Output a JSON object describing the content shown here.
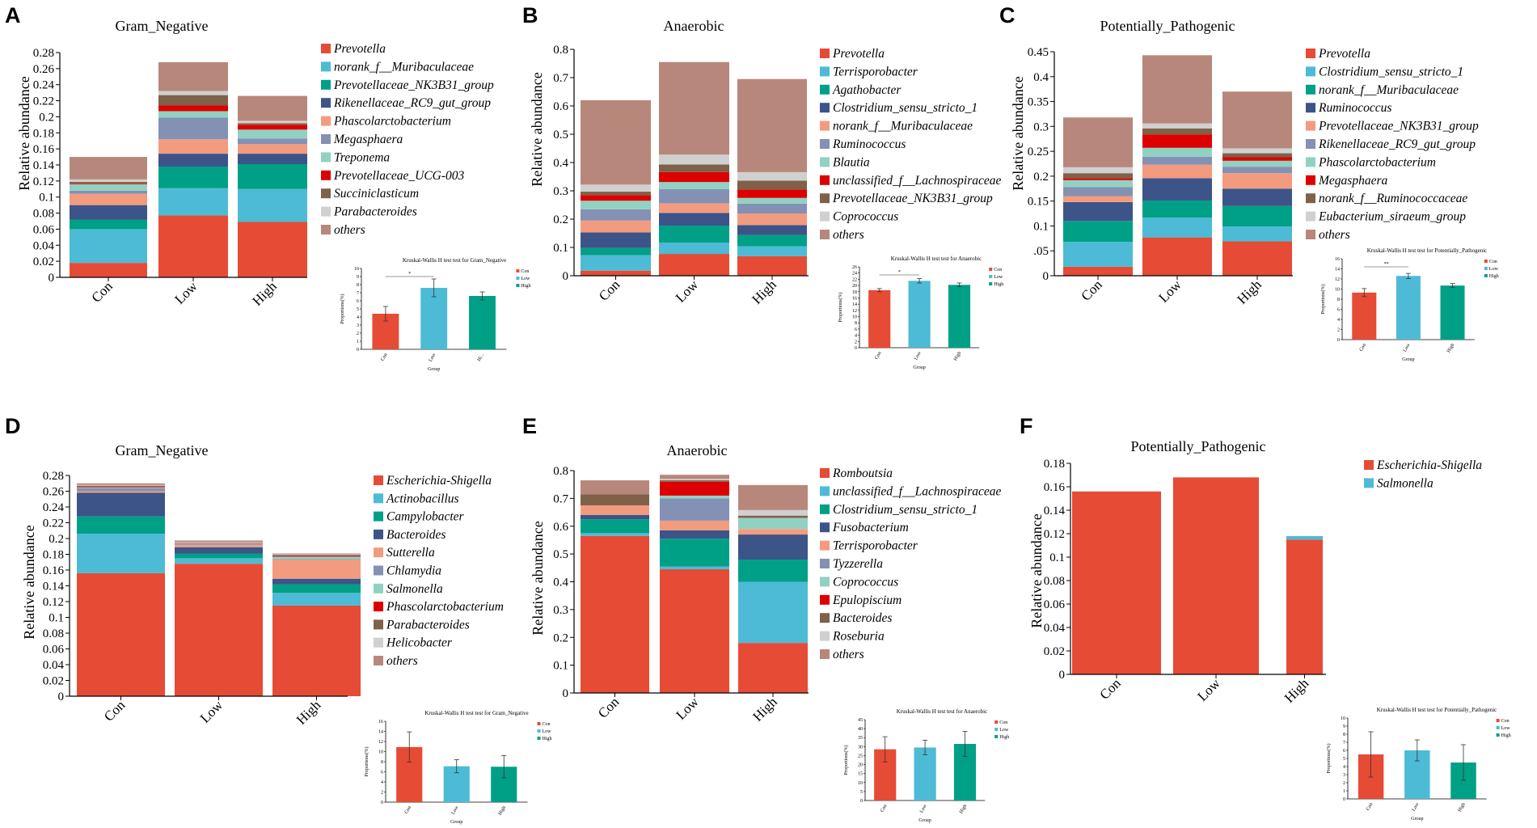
{
  "figure": {
    "colors": {
      "palette": [
        "#e64b35",
        "#4dbbd5",
        "#00a087",
        "#3c5488",
        "#f39b7f",
        "#8491b4",
        "#91d1c2",
        "#dc0000",
        "#7e6148",
        "#d0d0d0",
        "#b8877b"
      ],
      "test_bars": [
        "#e64b35",
        "#4dbbd5",
        "#00a087"
      ]
    }
  },
  "chart_data": [
    {
      "panel": "A",
      "type": "bar",
      "stacked": true,
      "title": "Gram_Negative",
      "ylabel": "Relative abundance",
      "xlabel": "",
      "ylim": [
        0,
        0.28
      ],
      "yticks": [
        "0",
        "0.02",
        "0.04",
        "0.06",
        "0.08",
        "0.1",
        "0.12",
        "0.14",
        "0.16",
        "0.18",
        "0.2",
        "0.22",
        "0.24",
        "0.26",
        "0.28"
      ],
      "categories": [
        "Con",
        "Low",
        "High"
      ],
      "series": [
        {
          "name": "Prevotella",
          "values": [
            0.018,
            0.077,
            0.069
          ]
        },
        {
          "name": "norank_f__Muribaculaceae",
          "values": [
            0.042,
            0.034,
            0.041
          ]
        },
        {
          "name": "Prevotellaceae_NK3B31_group",
          "values": [
            0.012,
            0.027,
            0.031
          ]
        },
        {
          "name": "Rikenellaceae_RC9_gut_group",
          "values": [
            0.018,
            0.016,
            0.013
          ]
        },
        {
          "name": "Phascolarctobacterium",
          "values": [
            0.014,
            0.018,
            0.012
          ]
        },
        {
          "name": "Megasphaera",
          "values": [
            0.004,
            0.027,
            0.007
          ]
        },
        {
          "name": "Treponema",
          "values": [
            0.008,
            0.008,
            0.011
          ]
        },
        {
          "name": "Prevotellaceae_UCG-003",
          "values": [
            0.001,
            0.007,
            0.006
          ]
        },
        {
          "name": "Succiniclasticum",
          "values": [
            0.002,
            0.013,
            0.002
          ]
        },
        {
          "name": "Parabacteroides",
          "values": [
            0.003,
            0.005,
            0.003
          ]
        },
        {
          "name": "others",
          "values": [
            0.028,
            0.036,
            0.031
          ]
        }
      ],
      "test": {
        "title": "Kruskal-Wallis H test test for Gram_Negative",
        "ylabel": "Proportions(%)",
        "xlabel": "Group",
        "yticks": [
          "0",
          "1",
          "2",
          "3",
          "4",
          "5",
          "6",
          "7",
          "8",
          "9",
          "10"
        ],
        "ymax": 10,
        "categories": [
          "Con",
          "Low",
          "Hi..."
        ],
        "values": [
          4.4,
          7.6,
          6.6
        ],
        "errors": [
          0.9,
          1.1,
          0.5
        ],
        "legend": [
          "Con",
          "Low",
          "High"
        ],
        "sig": "*"
      }
    },
    {
      "panel": "B",
      "type": "bar",
      "stacked": true,
      "title": "Anaerobic",
      "ylabel": "Relative abundance",
      "xlabel": "",
      "ylim": [
        0,
        0.8
      ],
      "yticks": [
        "0",
        "0.1",
        "0.2",
        "0.3",
        "0.4",
        "0.5",
        "0.6",
        "0.7",
        "0.8"
      ],
      "categories": [
        "Con",
        "Low",
        "High"
      ],
      "series": [
        {
          "name": "Prevotella",
          "values": [
            0.018,
            0.077,
            0.069
          ]
        },
        {
          "name": "Terrisporobacter",
          "values": [
            0.055,
            0.04,
            0.035
          ]
        },
        {
          "name": "Agathobacter",
          "values": [
            0.025,
            0.06,
            0.04
          ]
        },
        {
          "name": "Clostridium_sensu_stricto_1",
          "values": [
            0.055,
            0.045,
            0.035
          ]
        },
        {
          "name": "norank_f__Muribaculaceae",
          "values": [
            0.042,
            0.034,
            0.041
          ]
        },
        {
          "name": "Ruminococcus",
          "values": [
            0.04,
            0.05,
            0.035
          ]
        },
        {
          "name": "Blautia",
          "values": [
            0.03,
            0.025,
            0.02
          ]
        },
        {
          "name": "unclassified_f__Lachnospiraceae",
          "values": [
            0.02,
            0.035,
            0.03
          ]
        },
        {
          "name": "Prevotellaceae_NK3B31_group",
          "values": [
            0.012,
            0.027,
            0.031
          ]
        },
        {
          "name": "Coprococcus",
          "values": [
            0.025,
            0.035,
            0.03
          ]
        },
        {
          "name": "others",
          "values": [
            0.298,
            0.327,
            0.329
          ]
        }
      ],
      "test": {
        "title": "Kruskal-Wallis H test test for Anaerobic",
        "ylabel": "Proportions(%)",
        "xlabel": "Group",
        "yticks": [
          "0",
          "2",
          "4",
          "6",
          "8",
          "10",
          "12",
          "14",
          "16",
          "18",
          "20",
          "22",
          "24",
          "26"
        ],
        "ymax": 26,
        "categories": [
          "Con",
          "Low",
          "High"
        ],
        "values": [
          18.5,
          21.5,
          20.2
        ],
        "errors": [
          0.5,
          0.7,
          0.6
        ],
        "legend": [
          "Con",
          "Low",
          "High"
        ],
        "sig": "*"
      }
    },
    {
      "panel": "C",
      "type": "bar",
      "stacked": true,
      "title": "Potentially_Pathogenic",
      "ylabel": "Relative abundance",
      "xlabel": "",
      "ylim": [
        0,
        0.45
      ],
      "yticks": [
        "0",
        ".05",
        "0.1",
        "0.15",
        "0.2",
        "0.25",
        "0.3",
        "0.35",
        "0.4",
        "0.45"
      ],
      "categories": [
        "Con",
        "Low",
        "High"
      ],
      "series": [
        {
          "name": "Prevotella",
          "values": [
            0.018,
            0.077,
            0.069
          ]
        },
        {
          "name": "Clostridium_sensu_stricto_1",
          "values": [
            0.05,
            0.04,
            0.03
          ]
        },
        {
          "name": "norank_f__Muribaculaceae",
          "values": [
            0.042,
            0.034,
            0.041
          ]
        },
        {
          "name": "Ruminococcus",
          "values": [
            0.038,
            0.045,
            0.035
          ]
        },
        {
          "name": "Prevotellaceae_NK3B31_group",
          "values": [
            0.012,
            0.027,
            0.031
          ]
        },
        {
          "name": "Rikenellaceae_RC9_gut_group",
          "values": [
            0.018,
            0.016,
            0.013
          ]
        },
        {
          "name": "Phascolarctobacterium",
          "values": [
            0.014,
            0.018,
            0.012
          ]
        },
        {
          "name": "Megasphaera",
          "values": [
            0.004,
            0.027,
            0.007
          ]
        },
        {
          "name": "norank_f__Ruminococcaceae",
          "values": [
            0.01,
            0.012,
            0.008
          ]
        },
        {
          "name": "Eubacterium_siraeum_group",
          "values": [
            0.012,
            0.01,
            0.01
          ]
        },
        {
          "name": "others",
          "values": [
            0.1,
            0.137,
            0.114
          ]
        }
      ],
      "test": {
        "title": "Kruskal-Wallis H test test for Potentially_Pathogenic",
        "ylabel": "Proportions(%)",
        "xlabel": "Group",
        "yticks": [
          "0",
          "2",
          "4",
          "6",
          "8",
          "10",
          "12",
          "14",
          "16"
        ],
        "ymax": 16,
        "categories": [
          "Con",
          "Low",
          "High"
        ],
        "values": [
          9.3,
          12.6,
          10.7
        ],
        "errors": [
          0.8,
          0.5,
          0.4
        ],
        "legend": [
          "Con",
          "Low",
          "High"
        ],
        "sig": "**"
      }
    },
    {
      "panel": "D",
      "type": "bar",
      "stacked": true,
      "title": "Gram_Negative",
      "ylabel": "Relative abundance",
      "xlabel": "",
      "ylim": [
        0,
        0.28
      ],
      "yticks": [
        "0",
        "0.02",
        "0.04",
        "0.06",
        "0.08",
        "0.1",
        "0.12",
        "0.14",
        "0.16",
        "0.18",
        "0.2",
        "0.22",
        "0.24",
        "0.26",
        "0.28"
      ],
      "categories": [
        "Con",
        "Low",
        "High"
      ],
      "series": [
        {
          "name": "Escherichia-Shigella",
          "values": [
            0.156,
            0.168,
            0.115
          ]
        },
        {
          "name": "Actinobacillus",
          "values": [
            0.05,
            0.007,
            0.016
          ]
        },
        {
          "name": "Campylobacter",
          "values": [
            0.022,
            0.006,
            0.011
          ]
        },
        {
          "name": "Bacteroides",
          "values": [
            0.03,
            0.008,
            0.007
          ]
        },
        {
          "name": "Sutterella",
          "values": [
            0.002,
            0.003,
            0.024
          ]
        },
        {
          "name": "Chlamydia",
          "values": [
            0.004,
            0.001,
            0.001
          ]
        },
        {
          "name": "Salmonella",
          "values": [
            0.001,
            0.0005,
            0.003
          ]
        },
        {
          "name": "Phascolarctobacterium",
          "values": [
            0.001,
            0.0005,
            0.001
          ]
        },
        {
          "name": "Parabacteroides",
          "values": [
            0.001,
            0.0005,
            0.001
          ]
        },
        {
          "name": "Helicobacter",
          "values": [
            0.001,
            0.001,
            0.001
          ]
        },
        {
          "name": "others",
          "values": [
            0.002,
            0.002,
            0.001
          ]
        }
      ],
      "test": {
        "title": "Kruskal-Wallis H test test for Gram_Negative",
        "ylabel": "Proportions(%)",
        "xlabel": "Group",
        "yticks": [
          "0",
          "2",
          "4",
          "6",
          "8",
          "10",
          "12",
          "14",
          "16"
        ],
        "ymax": 16,
        "categories": [
          "Con",
          "Low",
          "High"
        ],
        "values": [
          10.9,
          7.1,
          7.0
        ],
        "errors": [
          3.0,
          1.3,
          2.2
        ],
        "legend": [
          "Con",
          "Low",
          "High"
        ],
        "sig": ""
      }
    },
    {
      "panel": "E",
      "type": "bar",
      "stacked": true,
      "title": "Anaerobic",
      "ylabel": "Relative abundance",
      "xlabel": "",
      "ylim": [
        0,
        0.8
      ],
      "yticks": [
        "0",
        "0.1",
        "0.2",
        "0.3",
        "0.4",
        "0.5",
        "0.6",
        "0.7",
        "0.8"
      ],
      "categories": [
        "Con",
        "Low",
        "High"
      ],
      "series": [
        {
          "name": "Romboutsia",
          "values": [
            0.565,
            0.445,
            0.18
          ]
        },
        {
          "name": "unclassified_f__Lachnospiraceae",
          "values": [
            0.01,
            0.01,
            0.22
          ]
        },
        {
          "name": "Clostridium_sensu_stricto_1",
          "values": [
            0.05,
            0.1,
            0.08
          ]
        },
        {
          "name": "Fusobacterium",
          "values": [
            0.015,
            0.03,
            0.09
          ]
        },
        {
          "name": "Terrisporobacter",
          "values": [
            0.035,
            0.035,
            0.02
          ]
        },
        {
          "name": "Tyzzerella",
          "values": [
            0.0,
            0.08,
            0.0
          ]
        },
        {
          "name": "Coprococcus",
          "values": [
            0.0,
            0.01,
            0.04
          ]
        },
        {
          "name": "Epulopiscium",
          "values": [
            0.0,
            0.05,
            0.0
          ]
        },
        {
          "name": "Bacteroides",
          "values": [
            0.04,
            0.005,
            0.008
          ]
        },
        {
          "name": "Roseburia",
          "values": [
            0.0,
            0.005,
            0.02
          ]
        },
        {
          "name": "others",
          "values": [
            0.05,
            0.015,
            0.09
          ]
        }
      ],
      "test": {
        "title": "Kruskal-Wallis H test test for Anaerobic",
        "ylabel": "Proportions(%)",
        "xlabel": "Group",
        "yticks": [
          "0",
          "5",
          "10",
          "15",
          "20",
          "25",
          "30",
          "35",
          "40",
          "45"
        ],
        "ymax": 45,
        "categories": [
          "Con",
          "Low",
          "High"
        ],
        "values": [
          28.5,
          29.5,
          31.5
        ],
        "errors": [
          7.0,
          4.0,
          7.0
        ],
        "legend": [
          "Con",
          "Low",
          "High"
        ],
        "sig": ""
      }
    },
    {
      "panel": "F",
      "type": "bar",
      "stacked": true,
      "title": "Potentially_Pathogenic",
      "ylabel": "Relative abundance",
      "xlabel": "",
      "ylim": [
        0,
        0.18
      ],
      "yticks": [
        "0",
        "0.02",
        "0.04",
        "0.06",
        "0.08",
        "0.1",
        "0.12",
        "0.14",
        "0.16",
        "0.18"
      ],
      "categories": [
        "Con",
        "Low",
        "High"
      ],
      "series": [
        {
          "name": "Escherichia-Shigella",
          "values": [
            0.156,
            0.168,
            0.115
          ]
        },
        {
          "name": "Salmonella",
          "values": [
            0.0,
            0.0,
            0.003
          ]
        }
      ],
      "test": {
        "title": "Kruskal-Wallis H test test for Potentially_Pathogenic",
        "ylabel": "Proportions(%)",
        "xlabel": "Group",
        "yticks": [
          "0",
          "1",
          "2",
          "3",
          "4",
          "5",
          "6",
          "7",
          "8",
          "9",
          "10"
        ],
        "ymax": 10,
        "categories": [
          "Con",
          "Low",
          "High"
        ],
        "values": [
          5.5,
          6.0,
          4.5
        ],
        "errors": [
          2.8,
          1.3,
          2.2
        ],
        "legend": [
          "Con",
          "Low",
          "High"
        ],
        "sig": ""
      }
    }
  ]
}
